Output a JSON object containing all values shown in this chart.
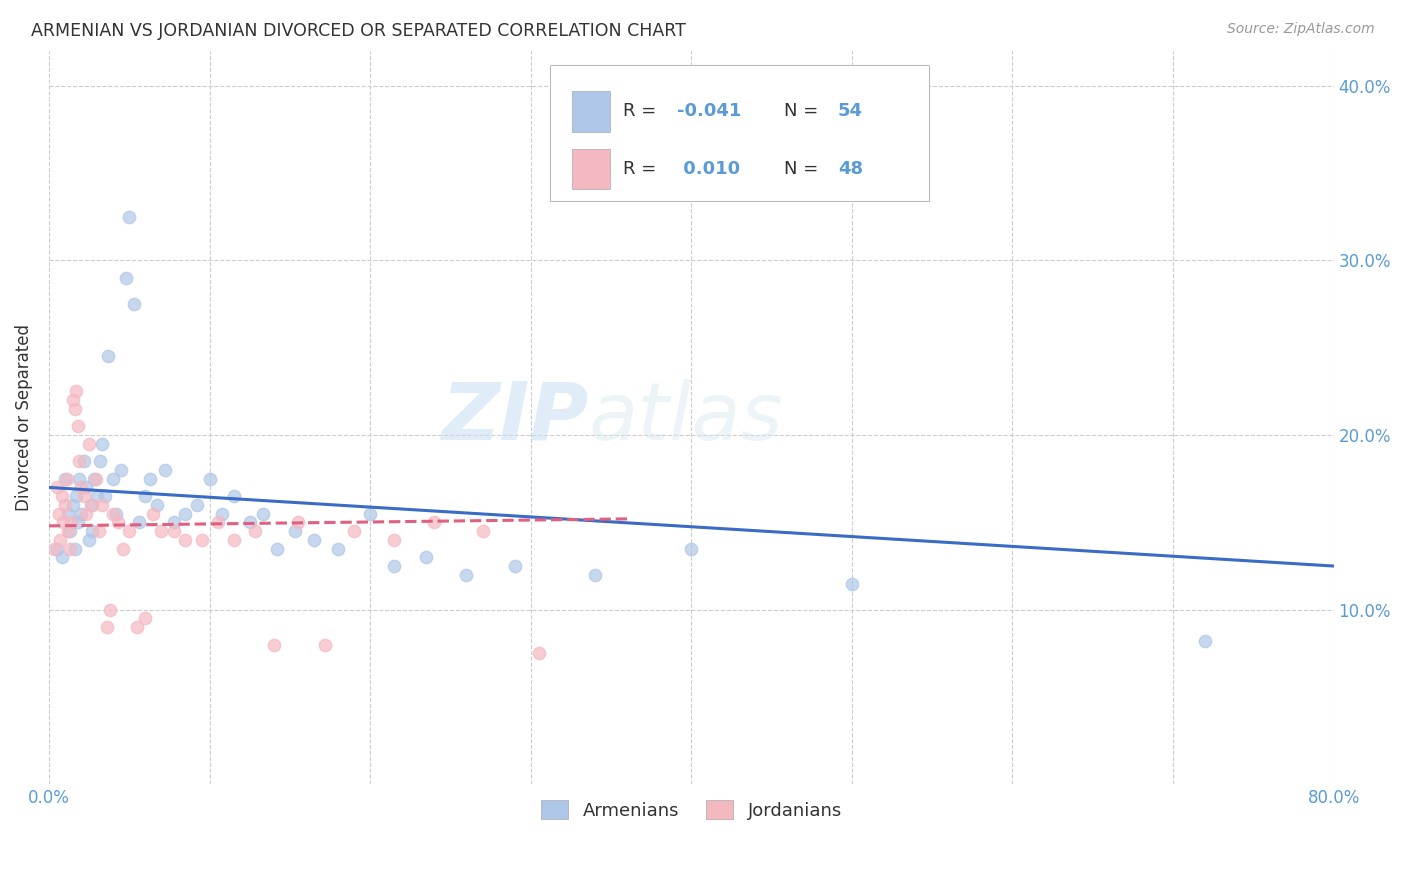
{
  "title": "ARMENIAN VS JORDANIAN DIVORCED OR SEPARATED CORRELATION CHART",
  "source": "Source: ZipAtlas.com",
  "ylabel": "Divorced or Separated",
  "xlim": [
    0.0,
    0.8
  ],
  "ylim": [
    0.0,
    0.42
  ],
  "xticks": [
    0.0,
    0.1,
    0.2,
    0.3,
    0.4,
    0.5,
    0.6,
    0.7,
    0.8
  ],
  "yticks": [
    0.0,
    0.1,
    0.2,
    0.3,
    0.4
  ],
  "ytick_labels_right": [
    "",
    "10.0%",
    "20.0%",
    "30.0%",
    "40.0%"
  ],
  "xtick_labels": [
    "0.0%",
    "",
    "",
    "",
    "",
    "",
    "",
    "",
    "80.0%"
  ],
  "blue_R": "-0.041",
  "blue_N": "54",
  "pink_R": "0.010",
  "pink_N": "48",
  "blue_color": "#aec6e8",
  "pink_color": "#f4b8c1",
  "blue_line_color": "#3b6cc5",
  "pink_line_color": "#e06080",
  "watermark_zip": "ZIP",
  "watermark_atlas": "atlas",
  "legend_label_blue": "Armenians",
  "legend_label_pink": "Jordanians",
  "blue_scatter_x": [
    0.005,
    0.008,
    0.01,
    0.012,
    0.013,
    0.015,
    0.016,
    0.017,
    0.018,
    0.019,
    0.02,
    0.022,
    0.023,
    0.025,
    0.026,
    0.027,
    0.028,
    0.03,
    0.032,
    0.033,
    0.035,
    0.037,
    0.04,
    0.042,
    0.045,
    0.048,
    0.05,
    0.053,
    0.056,
    0.06,
    0.063,
    0.067,
    0.072,
    0.078,
    0.085,
    0.092,
    0.1,
    0.108,
    0.115,
    0.125,
    0.133,
    0.142,
    0.153,
    0.165,
    0.18,
    0.2,
    0.215,
    0.235,
    0.26,
    0.29,
    0.34,
    0.4,
    0.5,
    0.72
  ],
  "blue_scatter_y": [
    0.135,
    0.13,
    0.175,
    0.155,
    0.145,
    0.16,
    0.135,
    0.165,
    0.15,
    0.175,
    0.155,
    0.185,
    0.17,
    0.14,
    0.16,
    0.145,
    0.175,
    0.165,
    0.185,
    0.195,
    0.165,
    0.245,
    0.175,
    0.155,
    0.18,
    0.29,
    0.325,
    0.275,
    0.15,
    0.165,
    0.175,
    0.16,
    0.18,
    0.15,
    0.155,
    0.16,
    0.175,
    0.155,
    0.165,
    0.15,
    0.155,
    0.135,
    0.145,
    0.14,
    0.135,
    0.155,
    0.125,
    0.13,
    0.12,
    0.125,
    0.12,
    0.135,
    0.115,
    0.082
  ],
  "pink_scatter_x": [
    0.003,
    0.005,
    0.006,
    0.007,
    0.008,
    0.009,
    0.01,
    0.011,
    0.012,
    0.013,
    0.014,
    0.015,
    0.016,
    0.017,
    0.018,
    0.019,
    0.02,
    0.022,
    0.023,
    0.025,
    0.027,
    0.029,
    0.031,
    0.033,
    0.036,
    0.038,
    0.04,
    0.043,
    0.046,
    0.05,
    0.055,
    0.06,
    0.065,
    0.07,
    0.078,
    0.085,
    0.095,
    0.105,
    0.115,
    0.128,
    0.14,
    0.155,
    0.172,
    0.19,
    0.215,
    0.24,
    0.27,
    0.305
  ],
  "pink_scatter_y": [
    0.135,
    0.17,
    0.155,
    0.14,
    0.165,
    0.15,
    0.16,
    0.175,
    0.145,
    0.135,
    0.15,
    0.22,
    0.215,
    0.225,
    0.205,
    0.185,
    0.17,
    0.165,
    0.155,
    0.195,
    0.16,
    0.175,
    0.145,
    0.16,
    0.09,
    0.1,
    0.155,
    0.15,
    0.135,
    0.145,
    0.09,
    0.095,
    0.155,
    0.145,
    0.145,
    0.14,
    0.14,
    0.15,
    0.14,
    0.145,
    0.08,
    0.15,
    0.08,
    0.145,
    0.14,
    0.15,
    0.145,
    0.075
  ],
  "blue_line_x": [
    0.0,
    0.8
  ],
  "blue_line_y": [
    0.17,
    0.125
  ],
  "pink_line_x": [
    0.0,
    0.36
  ],
  "pink_line_y": [
    0.148,
    0.152
  ],
  "background_color": "#ffffff",
  "grid_color": "#cccccc",
  "title_color": "#333333",
  "tick_color": "#5b9bd5",
  "marker_size": 80,
  "marker_alpha": 0.7
}
